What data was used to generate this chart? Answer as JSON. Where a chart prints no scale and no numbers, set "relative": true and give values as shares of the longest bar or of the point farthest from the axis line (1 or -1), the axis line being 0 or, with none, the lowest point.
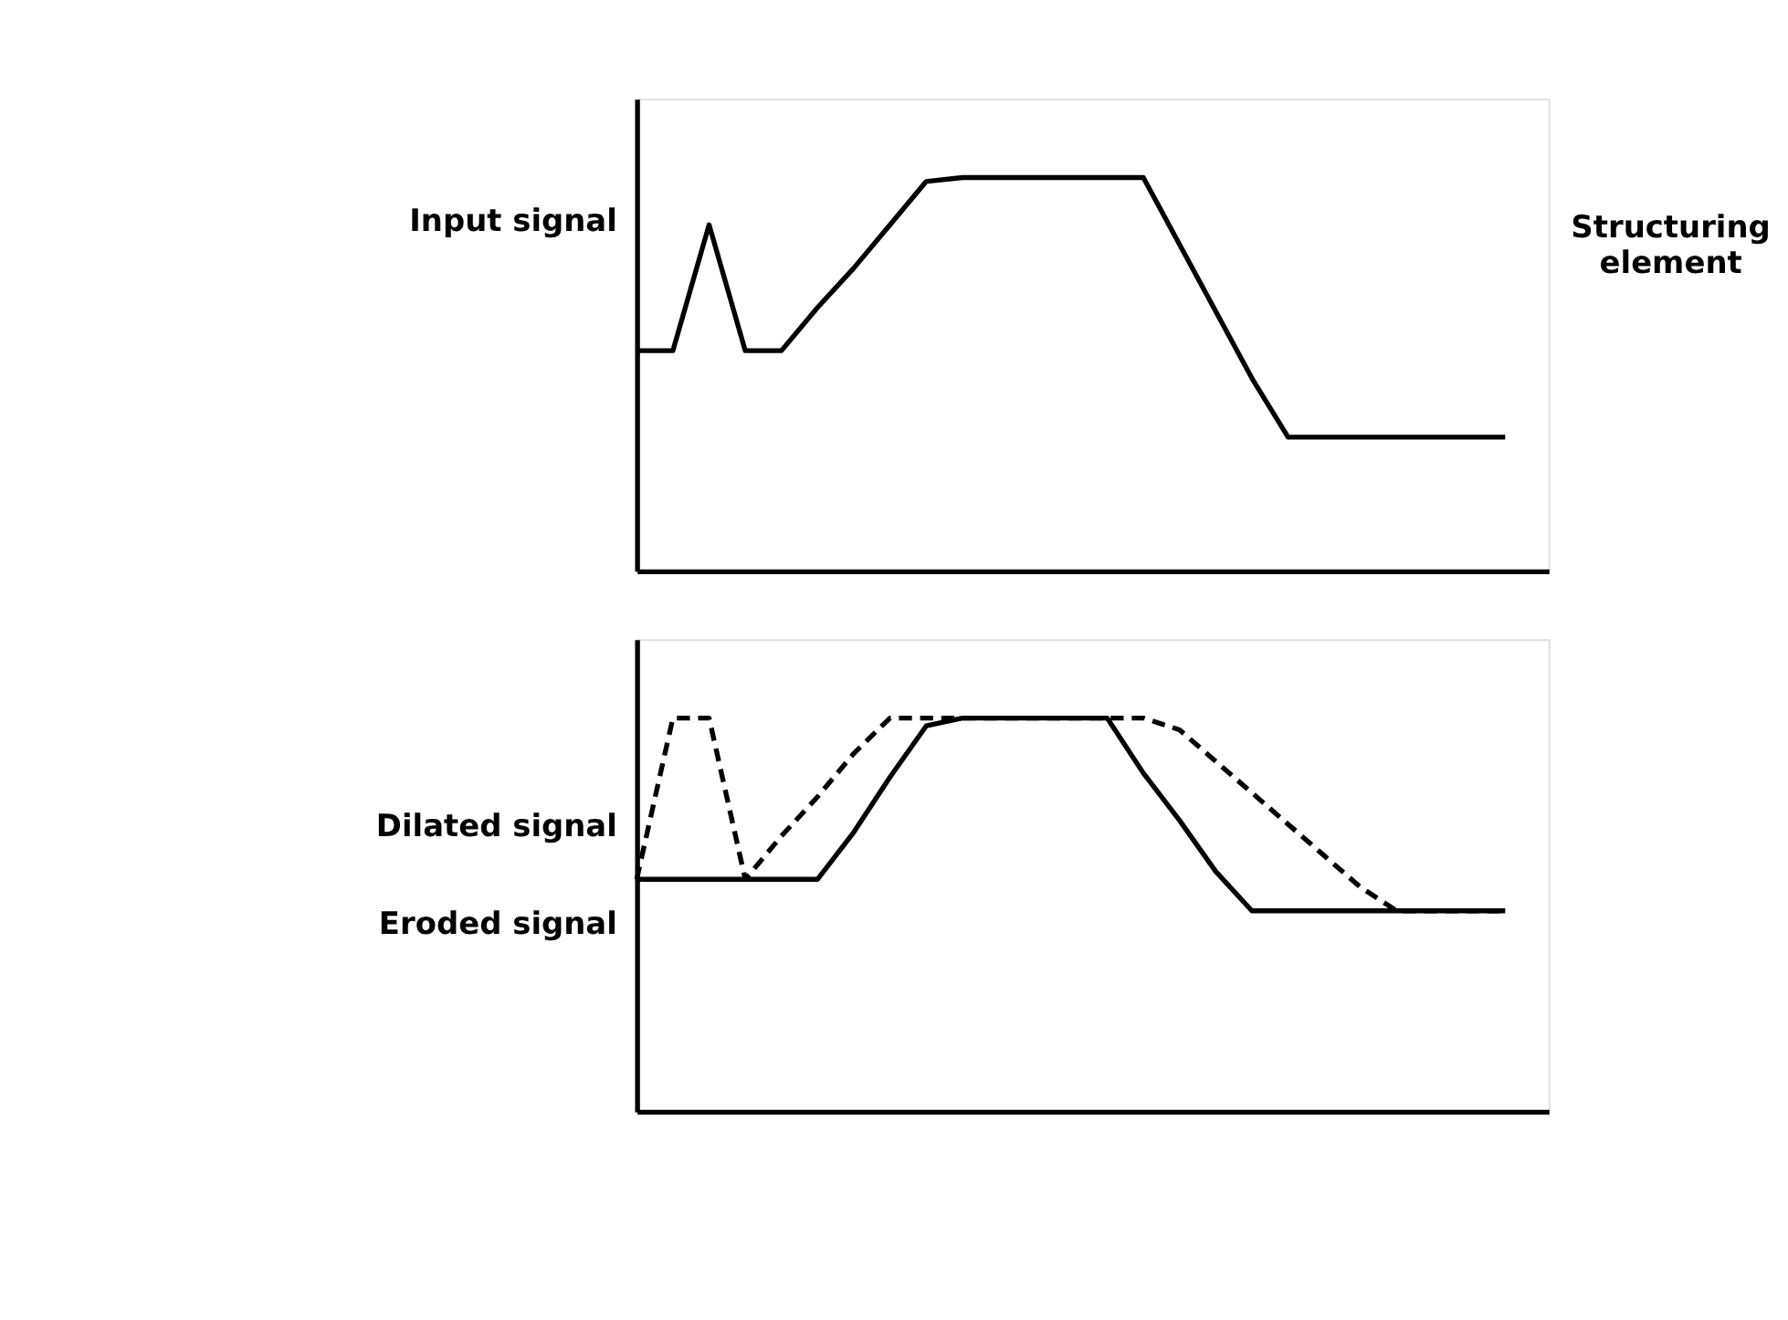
{
  "chart_data": [
    {
      "type": "line",
      "relative": true,
      "grid": false,
      "marker": "none",
      "categories": [
        null,
        null,
        null,
        null,
        null,
        null,
        null,
        null,
        null,
        null,
        null,
        null,
        null,
        null,
        null,
        null,
        null,
        null,
        null,
        null,
        null,
        null,
        null,
        null,
        null
      ],
      "series": [
        {
          "name": "Input signal",
          "color": "#000000",
          "line_style": "solid",
          "values": [
            0.56,
            0.56,
            0.88,
            0.56,
            0.56,
            0.67,
            0.77,
            0.88,
            0.99,
            1,
            1,
            1,
            1,
            1,
            1,
            0.83,
            0.66,
            0.49,
            0.34,
            0.34,
            0.34,
            0.34,
            0.34,
            0.34,
            0.34
          ]
        }
      ],
      "annotations": [
        "Structuring element"
      ]
    },
    {
      "type": "line",
      "relative": true,
      "grid": false,
      "marker": "none",
      "categories": [
        null,
        null,
        null,
        null,
        null,
        null,
        null,
        null,
        null,
        null,
        null,
        null,
        null,
        null,
        null,
        null,
        null,
        null,
        null,
        null,
        null,
        null,
        null,
        null,
        null
      ],
      "series": [
        {
          "name": "Dilated signal",
          "color": "#000000",
          "line_style": "dashed",
          "values": [
            0.59,
            1,
            1,
            0.59,
            0.7,
            0.8,
            0.91,
            1,
            1,
            1,
            1,
            1,
            1,
            1,
            1,
            0.97,
            0.89,
            0.81,
            0.73,
            0.65,
            0.57,
            0.51,
            0.51,
            0.51,
            0.51
          ]
        },
        {
          "name": "Eroded signal",
          "color": "#000000",
          "line_style": "solid",
          "values": [
            0.59,
            0.59,
            0.59,
            0.59,
            0.59,
            0.59,
            0.71,
            0.85,
            0.98,
            1,
            1,
            1,
            1,
            1,
            0.86,
            0.74,
            0.61,
            0.51,
            0.51,
            0.51,
            0.51,
            0.51,
            0.51,
            0.51,
            0.51
          ]
        }
      ]
    }
  ]
}
